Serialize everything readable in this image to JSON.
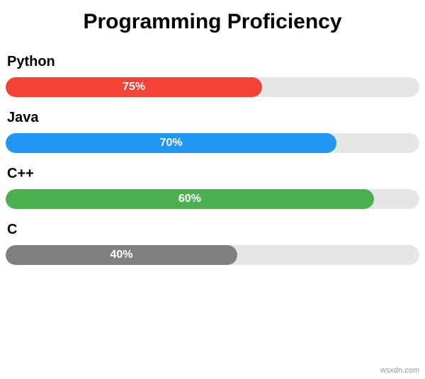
{
  "title": {
    "text": "Programming Proficiency",
    "fontsize": 30,
    "color": "#000000",
    "weight": "700"
  },
  "chart": {
    "type": "horizontal-progress-bars",
    "track_color": "#e6e6e6",
    "track_height": 28,
    "track_radius": 14,
    "label_fontsize": 20,
    "label_color": "#000000",
    "label_weight": "700",
    "value_text_color": "#ffffff",
    "value_fontsize": 16,
    "value_weight": "700",
    "items": [
      {
        "label": "Python",
        "value": 75,
        "display": "75%",
        "fill_color": "#f44336",
        "width_pct": "62%"
      },
      {
        "label": "Java",
        "value": 70,
        "display": "70%",
        "fill_color": "#2196f3",
        "width_pct": "80%"
      },
      {
        "label": "C++",
        "value": 60,
        "display": "60%",
        "fill_color": "#4caf50",
        "width_pct": "89%"
      },
      {
        "label": "C",
        "value": 40,
        "display": "40%",
        "fill_color": "#808080",
        "width_pct": "56%"
      }
    ]
  },
  "watermark": "wsxdn.com",
  "background_color": "#ffffff"
}
